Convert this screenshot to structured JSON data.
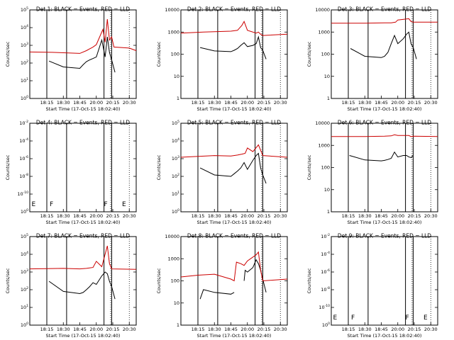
{
  "figure": {
    "xlabel": "Start Time (17-Oct-15 18:02:40)",
    "ylabel": "Counts/sec",
    "x_ticks": [
      "18:15",
      "18:30",
      "18:45",
      "20:00",
      "20:15",
      "20:30"
    ],
    "colors": {
      "events": "#000000",
      "lld": "#cc0000",
      "axes": "#000000"
    }
  },
  "chart_data": [
    {
      "type": "line",
      "title": "Det 1: BLACK = Events, RED = LLD",
      "scale": "log",
      "y_ticks": [
        "10^0",
        "10^1",
        "10^2",
        "10^3",
        "10^4",
        "10^5"
      ],
      "ylim": [
        1,
        100000
      ],
      "x_range": [
        "18:02:40",
        "20:37:00"
      ],
      "solid_markers": [
        "18:15",
        "18:33",
        "20:07",
        "20:14"
      ],
      "dotted_markers": [
        "20:13",
        "20:30"
      ],
      "letters": [],
      "series": [
        {
          "color": "black",
          "x": [
            "18:17",
            "18:30",
            "18:45",
            "19:00",
            "19:15",
            "19:30",
            "19:45",
            "20:00",
            "20:05",
            "20:08",
            "20:10",
            "20:12",
            "20:14",
            "20:17"
          ],
          "y": [
            130,
            60,
            50,
            80,
            120,
            150,
            180,
            220,
            2000,
            220,
            3000,
            400,
            150,
            30
          ]
        },
        {
          "color": "red",
          "x": [
            "18:02",
            "18:20",
            "18:45",
            "19:15",
            "19:45",
            "20:00",
            "20:06",
            "20:08",
            "20:10",
            "20:12",
            "20:14",
            "20:16",
            "20:30",
            "20:37"
          ],
          "y": [
            420,
            400,
            350,
            500,
            800,
            1100,
            8000,
            1500,
            30000,
            2000,
            3000,
            800,
            700,
            500
          ]
        }
      ]
    },
    {
      "type": "line",
      "title": "Det 2: BLACK = Events, RED = LLD",
      "scale": "log",
      "y_ticks": [
        "1",
        "10",
        "100",
        "1000",
        "10000"
      ],
      "ylim": [
        1,
        10000
      ],
      "x_range": [
        "18:02:40",
        "20:37:00"
      ],
      "solid_markers": [
        "18:15",
        "18:33",
        "20:07",
        "20:14"
      ],
      "dotted_markers": [
        "20:13",
        "20:30"
      ],
      "letters": [],
      "series": [
        {
          "color": "black",
          "x": [
            "18:17",
            "18:30",
            "18:45",
            "19:00",
            "19:15",
            "19:30",
            "19:45",
            "20:00",
            "20:05",
            "20:08",
            "20:10",
            "20:12",
            "20:14",
            "20:17"
          ],
          "y": [
            200,
            140,
            130,
            150,
            180,
            250,
            330,
            220,
            250,
            300,
            600,
            200,
            150,
            60
          ]
        },
        {
          "color": "red",
          "x": [
            "18:02",
            "18:20",
            "18:45",
            "19:15",
            "19:35",
            "19:45",
            "20:00",
            "20:08",
            "20:10",
            "20:12",
            "20:14",
            "20:37"
          ],
          "y": [
            900,
            1000,
            1100,
            1200,
            2000,
            3000,
            1200,
            900,
            1000,
            800,
            700,
            800
          ]
        }
      ]
    },
    {
      "type": "line",
      "title": "Det 3: BLACK = Events, RED = LLD",
      "scale": "log",
      "y_ticks": [
        "1",
        "10",
        "100",
        "1000",
        "10000"
      ],
      "ylim": [
        1,
        10000
      ],
      "x_range": [
        "18:02:40",
        "20:37:00"
      ],
      "solid_markers": [
        "18:15",
        "18:33",
        "20:07",
        "20:14"
      ],
      "dotted_markers": [
        "20:13",
        "20:30"
      ],
      "letters": [],
      "series": [
        {
          "color": "black",
          "x": [
            "18:17",
            "18:30",
            "18:45",
            "19:00",
            "19:15",
            "19:30",
            "19:45",
            "20:00",
            "20:05",
            "20:08",
            "20:10",
            "20:12",
            "20:14",
            "20:17"
          ],
          "y": [
            180,
            80,
            70,
            80,
            120,
            300,
            700,
            300,
            500,
            800,
            1000,
            300,
            200,
            60
          ]
        },
        {
          "color": "red",
          "x": [
            "18:02",
            "18:30",
            "19:00",
            "19:30",
            "19:50",
            "20:00",
            "20:10",
            "20:12",
            "20:14",
            "20:37"
          ],
          "y": [
            2500,
            2500,
            2600,
            2600,
            2800,
            3500,
            4000,
            3000,
            2800,
            2800
          ]
        }
      ]
    },
    {
      "type": "line",
      "title": "Det 4: BLACK = Events, RED = LLD",
      "scale": "log",
      "y_ticks": [
        "10^0",
        "10^-10",
        "10^-8",
        "10^-6",
        "10^-4",
        "10^-2"
      ],
      "ylim": [
        1e-10,
        0.01
      ],
      "x_range": [
        "18:02:40",
        "20:37:00"
      ],
      "solid_markers": [
        "18:15",
        "18:33",
        "20:07",
        "20:14"
      ],
      "dotted_markers": [
        "20:13",
        "20:30"
      ],
      "letters": [
        "E",
        "F",
        "F",
        "E"
      ],
      "series": []
    },
    {
      "type": "line",
      "title": "Det 5: BLACK = Events, RED = LLD",
      "scale": "log",
      "y_ticks": [
        "10^0",
        "10^1",
        "10^2",
        "10^3",
        "10^4",
        "10^5"
      ],
      "ylim": [
        1,
        100000
      ],
      "x_range": [
        "18:02:40",
        "20:37:00"
      ],
      "solid_markers": [
        "18:15",
        "18:33",
        "20:07",
        "20:14"
      ],
      "dotted_markers": [
        "20:13",
        "20:30"
      ],
      "letters": [],
      "series": [
        {
          "color": "black",
          "x": [
            "18:17",
            "18:30",
            "18:45",
            "19:00",
            "19:15",
            "19:30",
            "19:45",
            "20:00",
            "20:05",
            "20:08",
            "20:10",
            "20:12",
            "20:14",
            "20:17"
          ],
          "y": [
            300,
            120,
            100,
            140,
            200,
            300,
            600,
            250,
            800,
            1500,
            2000,
            300,
            120,
            40
          ]
        },
        {
          "color": "red",
          "x": [
            "18:02",
            "18:30",
            "18:45",
            "19:15",
            "19:35",
            "19:50",
            "20:00",
            "20:05",
            "20:10",
            "20:12",
            "20:14",
            "20:37"
          ],
          "y": [
            1200,
            1500,
            1400,
            1600,
            1800,
            2000,
            4000,
            2500,
            6000,
            3000,
            1500,
            1200
          ]
        }
      ]
    },
    {
      "type": "line",
      "title": "Det 6: BLACK = Events, RED = LLD",
      "scale": "log",
      "y_ticks": [
        "1",
        "10",
        "100",
        "1000",
        "10000"
      ],
      "ylim": [
        1,
        10000
      ],
      "x_range": [
        "18:02:40",
        "20:37:00"
      ],
      "solid_markers": [
        "18:15",
        "18:33",
        "20:07",
        "20:14"
      ],
      "dotted_markers": [
        "20:13",
        "20:30"
      ],
      "letters": [],
      "series": [
        {
          "color": "black",
          "x": [
            "18:16",
            "18:30",
            "18:45",
            "19:00",
            "19:15",
            "19:30",
            "19:45",
            "20:00",
            "20:05",
            "20:08",
            "20:10",
            "20:12",
            "20:14"
          ],
          "y": [
            350,
            220,
            200,
            210,
            230,
            260,
            500,
            300,
            350,
            350,
            300,
            280,
            350
          ]
        },
        {
          "color": "red",
          "x": [
            "18:02",
            "18:30",
            "19:00",
            "19:30",
            "19:45",
            "20:00",
            "20:10",
            "20:12",
            "20:14",
            "20:37"
          ],
          "y": [
            2500,
            2500,
            2600,
            2700,
            3000,
            2800,
            2800,
            2500,
            2600,
            2500
          ]
        }
      ]
    },
    {
      "type": "line",
      "title": "Det 7: BLACK = Events, RED = LLD",
      "scale": "log",
      "y_ticks": [
        "10^0",
        "10^1",
        "10^2",
        "10^3",
        "10^4",
        "10^5"
      ],
      "ylim": [
        1,
        100000
      ],
      "x_range": [
        "18:02:40",
        "20:37:00"
      ],
      "solid_markers": [
        "18:15",
        "18:33",
        "20:07",
        "20:14"
      ],
      "dotted_markers": [
        "20:13",
        "20:30"
      ],
      "letters": [],
      "series": [
        {
          "color": "black",
          "x": [
            "18:17",
            "18:30",
            "18:45",
            "19:00",
            "19:15",
            "19:30",
            "19:45",
            "20:00",
            "20:05",
            "20:08",
            "20:10",
            "20:12",
            "20:14",
            "20:17"
          ],
          "y": [
            300,
            80,
            60,
            70,
            100,
            150,
            250,
            200,
            600,
            1000,
            800,
            300,
            150,
            30
          ]
        },
        {
          "color": "red",
          "x": [
            "18:02",
            "18:30",
            "18:45",
            "19:15",
            "19:45",
            "20:00",
            "20:05",
            "20:10",
            "20:12",
            "20:14",
            "20:37"
          ],
          "y": [
            1500,
            1600,
            1500,
            1600,
            1800,
            4000,
            2000,
            30000,
            3000,
            1500,
            1400
          ]
        }
      ]
    },
    {
      "type": "line",
      "title": "Det 8: BLACK = Events, RED = LLD",
      "scale": "log",
      "y_ticks": [
        "1",
        "10",
        "100",
        "1000",
        "10000"
      ],
      "ylim": [
        1,
        10000
      ],
      "x_range": [
        "18:02:40",
        "20:37:00"
      ],
      "solid_markers": [
        "18:15",
        "18:33",
        "20:07",
        "20:14"
      ],
      "dotted_markers": [
        "20:13",
        "20:30"
      ],
      "letters": [],
      "series": [
        {
          "color": "black",
          "x": [
            "18:17",
            "18:20",
            "18:30",
            "18:45",
            "19:00"
          ],
          "y": [
            15,
            40,
            30,
            25,
            30
          ]
        },
        {
          "color": "black",
          "x": [
            "19:45",
            "19:50",
            "20:00",
            "20:05",
            "20:08",
            "20:10",
            "20:12",
            "20:14",
            "20:17"
          ],
          "y": [
            100,
            300,
            250,
            400,
            900,
            600,
            300,
            120,
            30
          ]
        },
        {
          "color": "red",
          "x": [
            "18:02",
            "18:15",
            "18:30",
            "18:45",
            "19:00",
            "19:10",
            "19:30",
            "19:45",
            "20:00",
            "20:08",
            "20:10",
            "20:12",
            "20:14",
            "20:37"
          ],
          "y": [
            150,
            180,
            200,
            120,
            100,
            700,
            600,
            500,
            800,
            1500,
            2000,
            300,
            100,
            120
          ]
        }
      ]
    },
    {
      "type": "line",
      "title": "Det 9: BLACK = Events, RED = LLD",
      "scale": "log",
      "y_ticks": [
        "10^0",
        "10^-10",
        "10^-8",
        "10^-6",
        "10^-4",
        "10^-2"
      ],
      "ylim": [
        1e-10,
        0.01
      ],
      "x_range": [
        "18:02:40",
        "20:37:00"
      ],
      "solid_markers": [
        "18:15",
        "18:33",
        "20:07",
        "20:14"
      ],
      "dotted_markers": [
        "20:13",
        "20:30"
      ],
      "letters": [
        "E",
        "F",
        "F",
        "E"
      ],
      "series": []
    }
  ]
}
